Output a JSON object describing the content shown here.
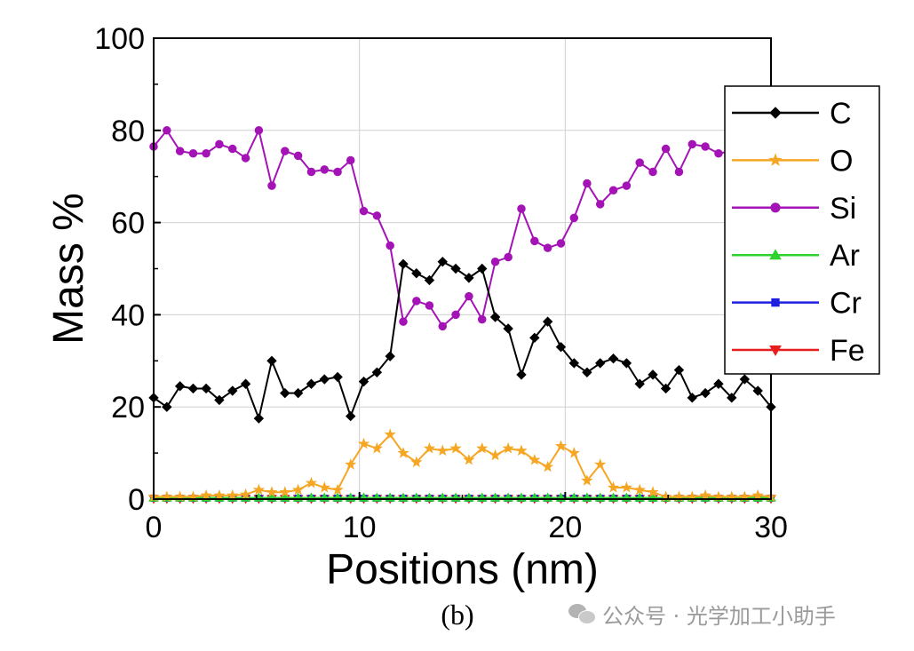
{
  "chart_data": {
    "type": "line",
    "title": "",
    "xlabel": "Positions (nm)",
    "ylabel": "Mass %",
    "xlim": [
      0,
      30
    ],
    "ylim": [
      0,
      100
    ],
    "x_ticks": [
      "0",
      "10",
      "20",
      "30"
    ],
    "y_ticks": [
      "0",
      "20",
      "40",
      "60",
      "80",
      "100"
    ],
    "grid": true,
    "legend_position": "right",
    "x": [
      0,
      0.64,
      1.28,
      1.92,
      2.55,
      3.19,
      3.83,
      4.47,
      5.11,
      5.74,
      6.38,
      7.02,
      7.66,
      8.3,
      8.94,
      9.57,
      10.21,
      10.85,
      11.49,
      12.13,
      12.77,
      13.4,
      14.04,
      14.68,
      15.32,
      15.96,
      16.6,
      17.23,
      17.87,
      18.51,
      19.15,
      19.79,
      20.43,
      21.06,
      21.7,
      22.34,
      22.98,
      23.62,
      24.26,
      24.89,
      25.53,
      26.17,
      26.81,
      27.45,
      28.09,
      28.72,
      29.36,
      30.0
    ],
    "series": [
      {
        "name": "C",
        "color": "#000000",
        "marker": "diamond",
        "values": [
          22,
          20,
          24.5,
          24,
          24,
          21.5,
          23.5,
          25,
          17.5,
          30,
          23,
          23,
          25,
          26,
          26.5,
          18,
          25.5,
          27.5,
          31,
          51,
          49,
          47.5,
          51.5,
          50,
          48,
          50,
          39.5,
          37,
          27,
          35,
          38.5,
          33,
          29.5,
          27.5,
          29.5,
          30.5,
          29.5,
          25,
          27,
          24,
          28,
          22,
          23,
          25,
          22,
          26,
          23.5,
          20
        ]
      },
      {
        "name": "O",
        "color": "#f5a623",
        "marker": "star",
        "values": [
          0.5,
          0.5,
          0.5,
          0.5,
          0.8,
          0.8,
          0.8,
          1,
          2,
          1.5,
          1.5,
          2,
          3.5,
          2.5,
          2,
          7.5,
          12,
          11,
          14,
          10,
          8,
          11,
          10.5,
          11,
          8.5,
          11,
          9.5,
          11,
          10.5,
          8.5,
          7,
          11.5,
          10,
          4,
          7.5,
          2.5,
          2.5,
          2,
          1.5,
          0.5,
          0.5,
          0.5,
          0.8,
          0.5,
          0.5,
          0.5,
          0.8,
          0.5
        ]
      },
      {
        "name": "Si",
        "color": "#a313b5",
        "marker": "circle",
        "values": [
          76.5,
          80,
          75.5,
          75,
          75,
          77,
          76,
          74,
          80,
          68,
          75.5,
          74.5,
          71,
          71.5,
          71,
          73.5,
          62.5,
          61.5,
          55,
          38.5,
          43,
          42,
          37.5,
          40,
          44,
          39,
          51.5,
          52.5,
          63,
          56,
          54.5,
          55.5,
          61,
          68.5,
          64,
          67,
          68,
          73,
          71,
          76,
          71,
          77,
          76.5,
          75,
          75.5,
          75,
          76,
          76
        ]
      },
      {
        "name": "Ar",
        "color": "#2ed12e",
        "marker": "triangle-up",
        "values": [
          0.3,
          0.3,
          0.3,
          0.3,
          0.3,
          0.3,
          0.3,
          0.3,
          0.3,
          0.3,
          0.3,
          0.3,
          0.3,
          0.3,
          0.3,
          0.3,
          0.3,
          0.3,
          0.3,
          0.3,
          0.3,
          0.3,
          0.3,
          0.3,
          0.3,
          0.3,
          0.3,
          0.3,
          0.3,
          0.3,
          0.3,
          0.3,
          0.3,
          0.3,
          0.3,
          0.3,
          0.3,
          0.3,
          0.3,
          0.3,
          0.3,
          0.3,
          0.3,
          0.3,
          0.3,
          0.3,
          0.3,
          0.3
        ]
      },
      {
        "name": "Cr",
        "color": "#1f1fe0",
        "marker": "square",
        "values": [
          0.2,
          0.2,
          0.2,
          0.2,
          0.2,
          0.2,
          0.2,
          0.2,
          0.2,
          0.2,
          0.2,
          0.2,
          0.2,
          0.2,
          0.2,
          0.2,
          0.2,
          0.2,
          0.2,
          0.2,
          0.2,
          0.2,
          0.2,
          0.2,
          0.2,
          0.2,
          0.2,
          0.2,
          0.2,
          0.2,
          0.2,
          0.2,
          0.2,
          0.2,
          0.2,
          0.2,
          0.2,
          0.2,
          0.2,
          0.2,
          0.2,
          0.2,
          0.2,
          0.2,
          0.2,
          0.2,
          0.2,
          0.2
        ]
      },
      {
        "name": "Fe",
        "color": "#e81e1e",
        "marker": "triangle-down",
        "values": [
          0.1,
          0.1,
          0.1,
          0.1,
          0.1,
          0.1,
          0.1,
          0.1,
          0.1,
          0.1,
          0.1,
          0.1,
          0.1,
          0.1,
          0.1,
          0.1,
          0.1,
          0.1,
          0.1,
          0.1,
          0.1,
          0.1,
          0.1,
          0.1,
          0.1,
          0.1,
          0.1,
          0.1,
          0.1,
          0.1,
          0.1,
          0.1,
          0.1,
          0.1,
          0.1,
          0.1,
          0.1,
          0.1,
          0.1,
          0.1,
          0.1,
          0.1,
          0.1,
          0.1,
          0.1,
          0.1,
          0.1,
          0.1
        ]
      }
    ]
  },
  "caption": "(b)",
  "watermark": {
    "text": "公众号 · 光学加工小助手",
    "icon": "wechat-icon"
  }
}
